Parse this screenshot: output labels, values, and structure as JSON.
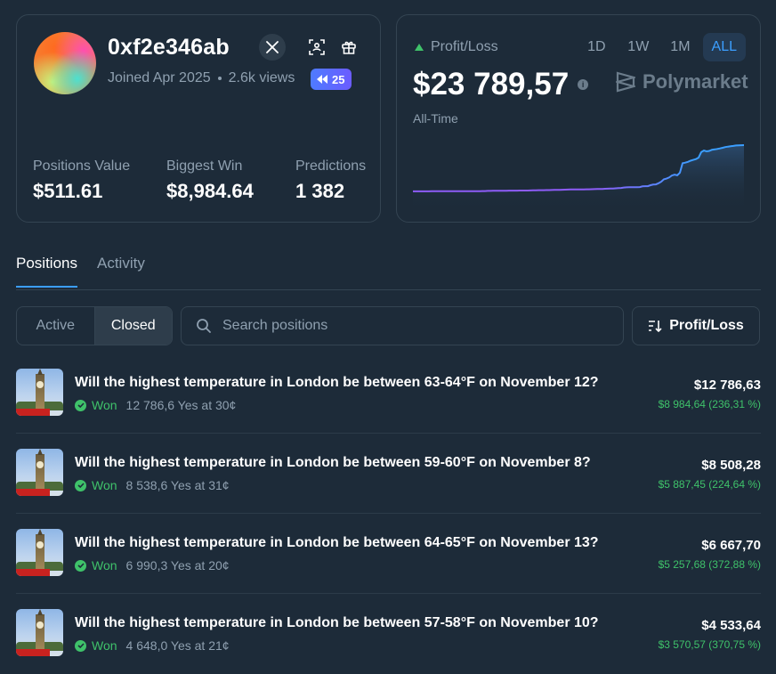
{
  "profile": {
    "username": "0xf2e346ab",
    "joined": "Joined Apr 2025",
    "views": "2.6k views",
    "badge_count": "25",
    "icons": [
      "x-logo-icon",
      "scan-icon",
      "gift-icon",
      "rewind-icon"
    ],
    "stats": [
      {
        "label": "Positions Value",
        "value": "$511.61"
      },
      {
        "label": "Biggest Win",
        "value": "$8,984.64"
      },
      {
        "label": "Predictions",
        "value": "1 382"
      }
    ]
  },
  "pnl": {
    "label": "Profit/Loss",
    "value": "$23 789,57",
    "period_label": "All-Time",
    "brand": "Polymarket",
    "ranges": [
      {
        "label": "1D",
        "active": false
      },
      {
        "label": "1W",
        "active": false
      },
      {
        "label": "1M",
        "active": false
      },
      {
        "label": "ALL",
        "active": true
      }
    ]
  },
  "chart_data": {
    "type": "line",
    "title": "",
    "xlabel": "",
    "ylabel": "",
    "grid": false,
    "legend": "none",
    "series": [
      {
        "color_start": "#8e5cf7",
        "color_end": "#3b9eff",
        "values": [
          0.05,
          0.05,
          0.05,
          0.06,
          0.06,
          0.06,
          0.06,
          0.07,
          0.07,
          0.07,
          0.08,
          0.08,
          0.09,
          0.1,
          0.1,
          0.1,
          0.11,
          0.11,
          0.12,
          0.12,
          0.13,
          0.13,
          0.14,
          0.15,
          0.15,
          0.16,
          0.18,
          0.2,
          0.26,
          0.27,
          0.3,
          0.34,
          0.36,
          0.37,
          0.37,
          0.38,
          0.4,
          0.42,
          0.43,
          0.43,
          0.44,
          0.45,
          0.46,
          0.48,
          0.52,
          0.55,
          0.58,
          0.62,
          0.64,
          0.65,
          0.68,
          0.7,
          0.74,
          0.8,
          0.82,
          0.84,
          0.86,
          0.92,
          0.97,
          1.0,
          1.02,
          1.04,
          1.06,
          1.06,
          1.05,
          1.08,
          1.12,
          1.14,
          1.18,
          1.22,
          1.26,
          1.3,
          1.35,
          1.4,
          1.46,
          1.52,
          1.58,
          1.68,
          1.78,
          2.0,
          2.1,
          2.14,
          2.16,
          2.18,
          2.2,
          2.22,
          2.6,
          2.7,
          2.68,
          3.2,
          3.5,
          3.6,
          4.2,
          5.0,
          6.2,
          6.6,
          7.2,
          8.2,
          8.6,
          8.3,
          9.6,
          14.5,
          14.8,
          15.2,
          15.8,
          16.2,
          16.6,
          17.4,
          20.2,
          21.0,
          20.6,
          20.8,
          21.4,
          21.6,
          21.8,
          22.1,
          22.4,
          22.8,
          23.0,
          23.2,
          23.4,
          23.6,
          23.7,
          23.75,
          23.79
        ]
      }
    ]
  },
  "tabs": [
    {
      "label": "Positions",
      "active": true
    },
    {
      "label": "Activity",
      "active": false
    }
  ],
  "filters": {
    "active_label": "Active",
    "closed_label": "Closed",
    "search_placeholder": "Search positions",
    "sort_label": "Profit/Loss"
  },
  "positions": [
    {
      "title": "Will the highest temperature in London be between 63-64°F on November 12?",
      "status": "Won",
      "detail": "12 786,6 Yes at 30¢",
      "value": "$12 786,63",
      "gain": "$8 984,64 (236,31 %)"
    },
    {
      "title": "Will the highest temperature in London be between 59-60°F on November 8?",
      "status": "Won",
      "detail": "8 538,6 Yes at 31¢",
      "value": "$8 508,28",
      "gain": "$5 887,45 (224,64 %)"
    },
    {
      "title": "Will the highest temperature in London be between 64-65°F on November 13?",
      "status": "Won",
      "detail": "6 990,3 Yes at 20¢",
      "value": "$6 667,70",
      "gain": "$5 257,68 (372,88 %)"
    },
    {
      "title": "Will the highest temperature in London be between 57-58°F on November 10?",
      "status": "Won",
      "detail": "4 648,0 Yes at 21¢",
      "value": "$4 533,64",
      "gain": "$3 570,57 (370,75 %)"
    }
  ]
}
